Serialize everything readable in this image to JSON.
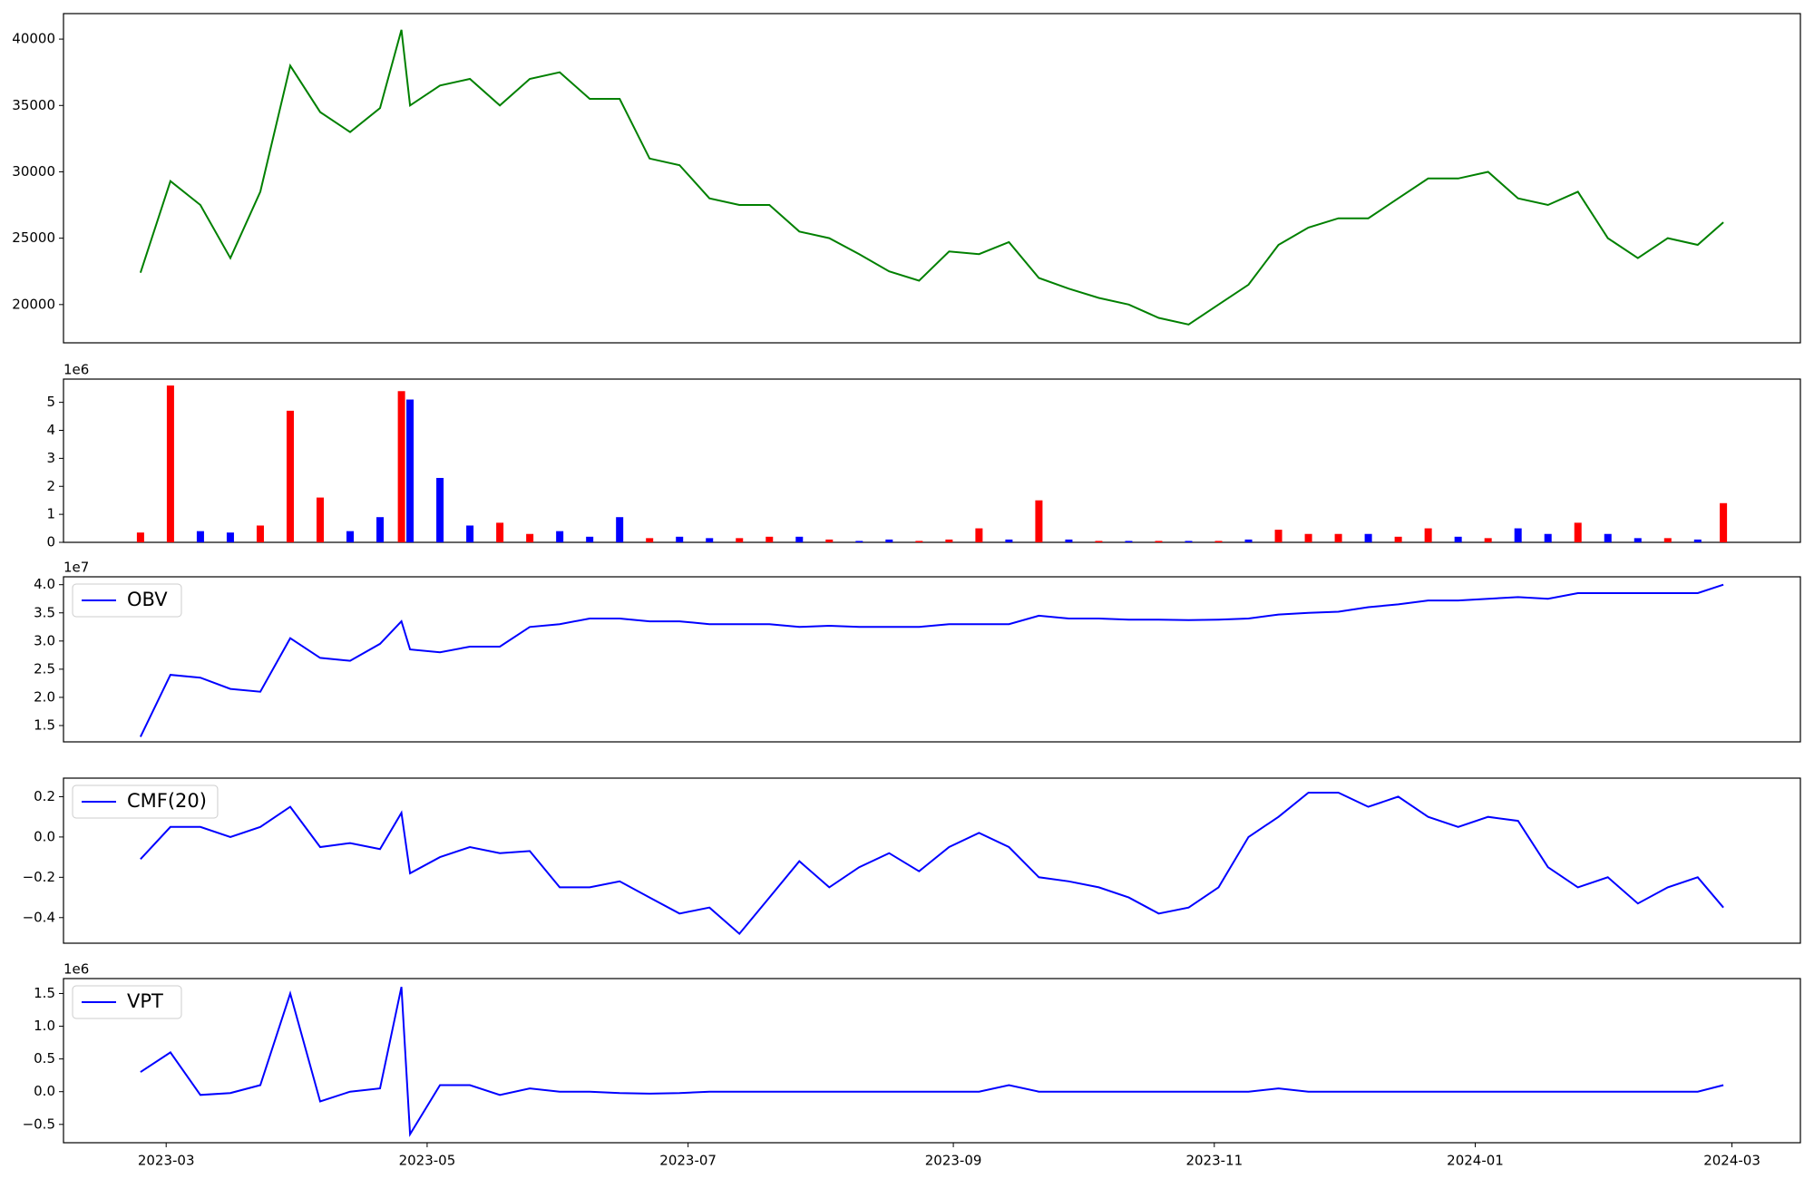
{
  "chart_data": [
    {
      "type": "line",
      "x": [
        "2023-02-23",
        "2023-03-02",
        "2023-03-09",
        "2023-03-16",
        "2023-03-23",
        "2023-03-30",
        "2023-04-06",
        "2023-04-13",
        "2023-04-20",
        "2023-04-25",
        "2023-04-27",
        "2023-05-04",
        "2023-05-11",
        "2023-05-18",
        "2023-05-25",
        "2023-06-01",
        "2023-06-08",
        "2023-06-15",
        "2023-06-22",
        "2023-06-29",
        "2023-07-06",
        "2023-07-13",
        "2023-07-20",
        "2023-07-27",
        "2023-08-03",
        "2023-08-10",
        "2023-08-17",
        "2023-08-24",
        "2023-08-31",
        "2023-09-07",
        "2023-09-14",
        "2023-09-21",
        "2023-09-28",
        "2023-10-05",
        "2023-10-12",
        "2023-10-19",
        "2023-10-26",
        "2023-11-02",
        "2023-11-09",
        "2023-11-16",
        "2023-11-23",
        "2023-11-30",
        "2023-12-07",
        "2023-12-14",
        "2023-12-21",
        "2023-12-28",
        "2024-01-04",
        "2024-01-11",
        "2024-01-18",
        "2024-01-25",
        "2024-02-01",
        "2024-02-08",
        "2024-02-15",
        "2024-02-22",
        "2024-02-28"
      ],
      "series": [
        {
          "color": "#008000",
          "values": [
            22400,
            29300,
            27500,
            23500,
            28500,
            38000,
            34500,
            33000,
            34800,
            40700,
            35000,
            36500,
            37000,
            35000,
            37000,
            37500,
            35500,
            35500,
            31000,
            30500,
            28000,
            27500,
            27500,
            25500,
            25000,
            23800,
            22500,
            21800,
            24000,
            23800,
            24700,
            22000,
            21200,
            20500,
            20000,
            19000,
            18500,
            20000,
            21500,
            24500,
            25800,
            26500,
            26500,
            28000,
            29500,
            29500,
            30000,
            28000,
            27500,
            28500,
            25000,
            23500,
            25000,
            24500,
            26200
          ]
        }
      ],
      "ylim": [
        17118,
        41920
      ],
      "yticks": [
        20000,
        25000,
        30000,
        35000,
        40000
      ]
    },
    {
      "type": "bar",
      "x": [
        "2023-02-23",
        "2023-03-02",
        "2023-03-09",
        "2023-03-16",
        "2023-03-23",
        "2023-03-30",
        "2023-04-06",
        "2023-04-13",
        "2023-04-20",
        "2023-04-25",
        "2023-04-27",
        "2023-05-04",
        "2023-05-11",
        "2023-05-18",
        "2023-05-25",
        "2023-06-01",
        "2023-06-08",
        "2023-06-15",
        "2023-06-22",
        "2023-06-29",
        "2023-07-06",
        "2023-07-13",
        "2023-07-20",
        "2023-07-27",
        "2023-08-03",
        "2023-08-10",
        "2023-08-17",
        "2023-08-24",
        "2023-08-31",
        "2023-09-07",
        "2023-09-14",
        "2023-09-21",
        "2023-09-28",
        "2023-10-05",
        "2023-10-12",
        "2023-10-19",
        "2023-10-26",
        "2023-11-02",
        "2023-11-09",
        "2023-11-16",
        "2023-11-23",
        "2023-11-30",
        "2023-12-07",
        "2023-12-14",
        "2023-12-21",
        "2023-12-28",
        "2024-01-04",
        "2024-01-11",
        "2024-01-18",
        "2024-01-25",
        "2024-02-01",
        "2024-02-08",
        "2024-02-15",
        "2024-02-22",
        "2024-02-28"
      ],
      "series": [
        {
          "color": "#ff0000",
          "values": [
            350000,
            5600000,
            null,
            null,
            600000,
            4700000,
            1600000,
            null,
            null,
            5400000,
            null,
            null,
            null,
            700000,
            300000,
            null,
            null,
            null,
            150000,
            null,
            null,
            150000,
            200000,
            null,
            100000,
            null,
            null,
            50000,
            100000,
            500000,
            null,
            1500000,
            null,
            50000,
            null,
            50000,
            null,
            50000,
            null,
            450000,
            300000,
            300000,
            null,
            200000,
            500000,
            null,
            150000,
            null,
            null,
            700000,
            null,
            null,
            150000,
            null,
            1400000
          ]
        },
        {
          "color": "#0000ff",
          "values": [
            null,
            null,
            400000,
            350000,
            null,
            null,
            null,
            400000,
            900000,
            null,
            5100000,
            2300000,
            600000,
            null,
            null,
            400000,
            200000,
            900000,
            null,
            200000,
            150000,
            null,
            null,
            200000,
            null,
            50000,
            100000,
            null,
            null,
            null,
            100000,
            null,
            100000,
            null,
            50000,
            null,
            50000,
            null,
            100000,
            null,
            null,
            null,
            300000,
            null,
            null,
            200000,
            null,
            500000,
            300000,
            null,
            300000,
            150000,
            null,
            100000,
            null
          ]
        }
      ],
      "ylim": [
        0,
        5830000
      ],
      "yticks": [
        0,
        {
          "value": 1000000,
          "label": "1"
        },
        {
          "value": 2000000,
          "label": "2"
        },
        {
          "value": 3000000,
          "label": "3"
        },
        {
          "value": 4000000,
          "label": "4"
        },
        {
          "value": 5000000,
          "label": "5"
        }
      ],
      "offset_label": "1e6"
    },
    {
      "type": "line",
      "x": [
        "2023-02-23",
        "2023-03-02",
        "2023-03-09",
        "2023-03-16",
        "2023-03-23",
        "2023-03-30",
        "2023-04-06",
        "2023-04-13",
        "2023-04-20",
        "2023-04-25",
        "2023-04-27",
        "2023-05-04",
        "2023-05-11",
        "2023-05-18",
        "2023-05-25",
        "2023-06-01",
        "2023-06-08",
        "2023-06-15",
        "2023-06-22",
        "2023-06-29",
        "2023-07-06",
        "2023-07-13",
        "2023-07-20",
        "2023-07-27",
        "2023-08-03",
        "2023-08-10",
        "2023-08-17",
        "2023-08-24",
        "2023-08-31",
        "2023-09-07",
        "2023-09-14",
        "2023-09-21",
        "2023-09-28",
        "2023-10-05",
        "2023-10-12",
        "2023-10-19",
        "2023-10-26",
        "2023-11-02",
        "2023-11-09",
        "2023-11-16",
        "2023-11-23",
        "2023-11-30",
        "2023-12-07",
        "2023-12-14",
        "2023-12-21",
        "2023-12-28",
        "2024-01-04",
        "2024-01-11",
        "2024-01-18",
        "2024-01-25",
        "2024-02-01",
        "2024-02-08",
        "2024-02-15",
        "2024-02-22",
        "2024-02-28"
      ],
      "series": [
        {
          "name": "OBV",
          "color": "#0000ff",
          "values": [
            13000000,
            24000000,
            23500000,
            21500000,
            21000000,
            30500000,
            27000000,
            26500000,
            29500000,
            33500000,
            28500000,
            28000000,
            29000000,
            29000000,
            32500000,
            33000000,
            34000000,
            34000000,
            33500000,
            33500000,
            33000000,
            33000000,
            33000000,
            32500000,
            32700000,
            32500000,
            32500000,
            32500000,
            33000000,
            33000000,
            33000000,
            34500000,
            34000000,
            34000000,
            33800000,
            33800000,
            33700000,
            33800000,
            34000000,
            34700000,
            35000000,
            35200000,
            36000000,
            36500000,
            37200000,
            37200000,
            37500000,
            37800000,
            37500000,
            38500000,
            38500000,
            38500000,
            38500000,
            38500000,
            40000000
          ]
        }
      ],
      "ylim": [
        12100000,
        41400000
      ],
      "yticks": [
        {
          "value": 15000000,
          "label": "1.5"
        },
        {
          "value": 20000000,
          "label": "2.0"
        },
        {
          "value": 25000000,
          "label": "2.5"
        },
        {
          "value": 30000000,
          "label": "3.0"
        },
        {
          "value": 35000000,
          "label": "3.5"
        },
        {
          "value": 40000000,
          "label": "4.0"
        }
      ],
      "offset_label": "1e7",
      "legend": "upper left"
    },
    {
      "type": "line",
      "x": [
        "2023-02-23",
        "2023-03-02",
        "2023-03-09",
        "2023-03-16",
        "2023-03-23",
        "2023-03-30",
        "2023-04-06",
        "2023-04-13",
        "2023-04-20",
        "2023-04-25",
        "2023-04-27",
        "2023-05-04",
        "2023-05-11",
        "2023-05-18",
        "2023-05-25",
        "2023-06-01",
        "2023-06-08",
        "2023-06-15",
        "2023-06-22",
        "2023-06-29",
        "2023-07-06",
        "2023-07-13",
        "2023-07-20",
        "2023-07-27",
        "2023-08-03",
        "2023-08-10",
        "2023-08-17",
        "2023-08-24",
        "2023-08-31",
        "2023-09-07",
        "2023-09-14",
        "2023-09-21",
        "2023-09-28",
        "2023-10-05",
        "2023-10-12",
        "2023-10-19",
        "2023-10-26",
        "2023-11-02",
        "2023-11-09",
        "2023-11-16",
        "2023-11-23",
        "2023-11-30",
        "2023-12-07",
        "2023-12-14",
        "2023-12-21",
        "2023-12-28",
        "2024-01-04",
        "2024-01-11",
        "2024-01-18",
        "2024-01-25",
        "2024-02-01",
        "2024-02-08",
        "2024-02-15",
        "2024-02-22",
        "2024-02-28"
      ],
      "series": [
        {
          "name": "CMF(20)",
          "color": "#0000ff",
          "values": [
            -0.11,
            0.05,
            0.05,
            0.0,
            0.05,
            0.15,
            -0.05,
            -0.03,
            -0.06,
            0.12,
            -0.18,
            -0.1,
            -0.05,
            -0.08,
            -0.07,
            -0.25,
            -0.25,
            -0.22,
            -0.3,
            -0.38,
            -0.35,
            -0.48,
            -0.3,
            -0.12,
            -0.25,
            -0.15,
            -0.08,
            -0.17,
            -0.05,
            0.02,
            -0.05,
            -0.2,
            -0.22,
            -0.25,
            -0.3,
            -0.38,
            -0.35,
            -0.25,
            0.0,
            0.1,
            0.22,
            0.22,
            0.15,
            0.2,
            0.1,
            0.05,
            0.1,
            0.08,
            -0.15,
            -0.25,
            -0.2,
            -0.33,
            -0.25,
            -0.2,
            -0.35
          ]
        }
      ],
      "ylim": [
        -0.527,
        0.292
      ],
      "yticks": [
        {
          "value": -0.4,
          "label": "−0.4"
        },
        {
          "value": -0.2,
          "label": "−0.2"
        },
        {
          "value": 0,
          "label": "0.0"
        },
        0.2
      ],
      "legend": "upper left"
    },
    {
      "type": "line",
      "x": [
        "2023-02-23",
        "2023-03-02",
        "2023-03-09",
        "2023-03-16",
        "2023-03-23",
        "2023-03-30",
        "2023-04-06",
        "2023-04-13",
        "2023-04-20",
        "2023-04-25",
        "2023-04-27",
        "2023-05-04",
        "2023-05-11",
        "2023-05-18",
        "2023-05-25",
        "2023-06-01",
        "2023-06-08",
        "2023-06-15",
        "2023-06-22",
        "2023-06-29",
        "2023-07-06",
        "2023-07-13",
        "2023-07-20",
        "2023-07-27",
        "2023-08-03",
        "2023-08-10",
        "2023-08-17",
        "2023-08-24",
        "2023-08-31",
        "2023-09-07",
        "2023-09-14",
        "2023-09-21",
        "2023-09-28",
        "2023-10-05",
        "2023-10-12",
        "2023-10-19",
        "2023-10-26",
        "2023-11-02",
        "2023-11-09",
        "2023-11-16",
        "2023-11-23",
        "2023-11-30",
        "2023-12-07",
        "2023-12-14",
        "2023-12-21",
        "2023-12-28",
        "2024-01-04",
        "2024-01-11",
        "2024-01-18",
        "2024-01-25",
        "2024-02-01",
        "2024-02-08",
        "2024-02-15",
        "2024-02-22",
        "2024-02-28"
      ],
      "series": [
        {
          "name": "VPT",
          "color": "#0000ff",
          "values": [
            300000,
            600000,
            -50000,
            -20000,
            100000,
            1500000,
            -150000,
            0,
            50000,
            1600000,
            -650000,
            100000,
            100000,
            -50000,
            50000,
            0,
            0,
            -20000,
            -30000,
            -20000,
            0,
            0,
            0,
            0,
            0,
            0,
            0,
            0,
            0,
            0,
            100000,
            0,
            0,
            0,
            0,
            0,
            0,
            0,
            0,
            50000,
            0,
            0,
            0,
            0,
            0,
            0,
            0,
            0,
            0,
            0,
            0,
            0,
            0,
            0,
            100000
          ]
        }
      ],
      "ylim": [
        -780000,
        1728000
      ],
      "yticks": [
        {
          "value": -500000,
          "label": "−0.5"
        },
        {
          "value": 0,
          "label": "0.0"
        },
        {
          "value": 500000,
          "label": "0.5"
        },
        {
          "value": 1000000,
          "label": "1.0"
        },
        {
          "value": 1500000,
          "label": "1.5"
        }
      ],
      "offset_label": "1e6",
      "legend": "upper left",
      "xlim": [
        "2023-02-05",
        "2024-03-17"
      ],
      "xticks": [
        "2023-03",
        "2023-05",
        "2023-07",
        "2023-09",
        "2023-11",
        "2024-01",
        "2024-03"
      ]
    }
  ]
}
